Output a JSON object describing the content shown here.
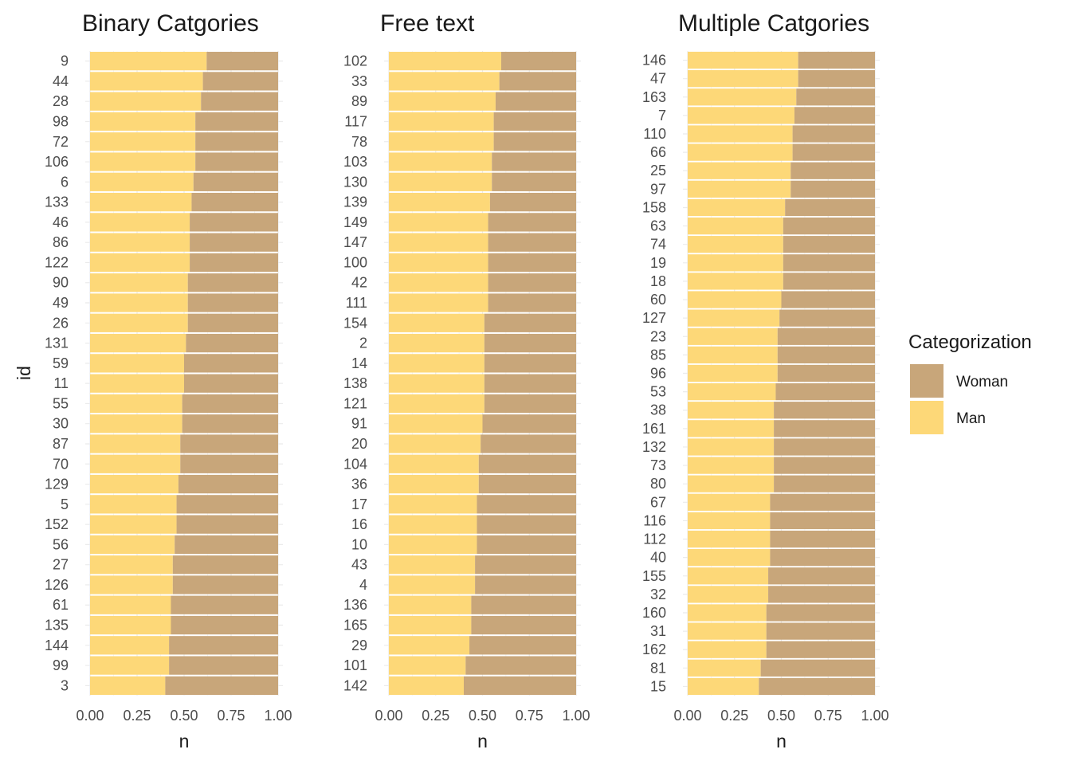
{
  "colors": {
    "woman": "#c8a67a",
    "man": "#fdd878",
    "background": "#ffffff"
  },
  "legend": {
    "title": "Categorization",
    "items": [
      {
        "label": "Woman",
        "color": "#c8a67a"
      },
      {
        "label": "Man",
        "color": "#fdd878"
      }
    ]
  },
  "y_axis_title": "id",
  "chart_data": [
    {
      "type": "bar",
      "orientation": "horizontal",
      "stacked": true,
      "title": "Binary Catgories",
      "xlabel": "n",
      "ylabel": "id",
      "xlim": [
        0,
        1
      ],
      "xticks": [
        "0.00",
        "0.25",
        "0.50",
        "0.75",
        "1.00"
      ],
      "categories": [
        "9",
        "44",
        "28",
        "98",
        "72",
        "106",
        "6",
        "133",
        "46",
        "86",
        "122",
        "90",
        "49",
        "26",
        "131",
        "59",
        "11",
        "55",
        "30",
        "87",
        "70",
        "129",
        "5",
        "152",
        "56",
        "27",
        "126",
        "61",
        "135",
        "144",
        "99",
        "3"
      ],
      "series": [
        {
          "name": "Man",
          "values": [
            0.62,
            0.6,
            0.59,
            0.56,
            0.56,
            0.56,
            0.55,
            0.54,
            0.53,
            0.53,
            0.53,
            0.52,
            0.52,
            0.52,
            0.51,
            0.5,
            0.5,
            0.49,
            0.49,
            0.48,
            0.48,
            0.47,
            0.46,
            0.46,
            0.45,
            0.44,
            0.44,
            0.43,
            0.43,
            0.42,
            0.42,
            0.4
          ]
        },
        {
          "name": "Woman",
          "values": [
            0.38,
            0.4,
            0.41,
            0.44,
            0.44,
            0.44,
            0.45,
            0.46,
            0.47,
            0.47,
            0.47,
            0.48,
            0.48,
            0.48,
            0.49,
            0.5,
            0.5,
            0.51,
            0.51,
            0.52,
            0.52,
            0.53,
            0.54,
            0.54,
            0.55,
            0.56,
            0.56,
            0.57,
            0.57,
            0.58,
            0.58,
            0.6
          ]
        }
      ]
    },
    {
      "type": "bar",
      "orientation": "horizontal",
      "stacked": true,
      "title": "Free text",
      "xlabel": "n",
      "xlim": [
        0,
        1
      ],
      "xticks": [
        "0.00",
        "0.25",
        "0.50",
        "0.75",
        "1.00"
      ],
      "categories": [
        "102",
        "33",
        "89",
        "117",
        "78",
        "103",
        "130",
        "139",
        "149",
        "147",
        "100",
        "42",
        "111",
        "154",
        "2",
        "14",
        "138",
        "121",
        "91",
        "20",
        "104",
        "36",
        "17",
        "16",
        "10",
        "43",
        "4",
        "136",
        "165",
        "29",
        "101",
        "142"
      ],
      "series": [
        {
          "name": "Man",
          "values": [
            0.6,
            0.59,
            0.57,
            0.56,
            0.56,
            0.55,
            0.55,
            0.54,
            0.53,
            0.53,
            0.53,
            0.53,
            0.53,
            0.51,
            0.51,
            0.51,
            0.51,
            0.51,
            0.5,
            0.49,
            0.48,
            0.48,
            0.47,
            0.47,
            0.47,
            0.46,
            0.46,
            0.44,
            0.44,
            0.43,
            0.41,
            0.4
          ]
        },
        {
          "name": "Woman",
          "values": [
            0.4,
            0.41,
            0.43,
            0.44,
            0.44,
            0.45,
            0.45,
            0.46,
            0.47,
            0.47,
            0.47,
            0.47,
            0.47,
            0.49,
            0.49,
            0.49,
            0.49,
            0.49,
            0.5,
            0.51,
            0.52,
            0.52,
            0.53,
            0.53,
            0.53,
            0.54,
            0.54,
            0.56,
            0.56,
            0.57,
            0.59,
            0.6
          ]
        }
      ]
    },
    {
      "type": "bar",
      "orientation": "horizontal",
      "stacked": true,
      "title": "Multiple Catgories",
      "xlabel": "n",
      "xlim": [
        0,
        1
      ],
      "xticks": [
        "0.00",
        "0.25",
        "0.50",
        "0.75",
        "1.00"
      ],
      "categories": [
        "146",
        "47",
        "163",
        "7",
        "110",
        "66",
        "25",
        "97",
        "158",
        "63",
        "74",
        "19",
        "18",
        "60",
        "127",
        "23",
        "85",
        "96",
        "53",
        "38",
        "161",
        "132",
        "73",
        "80",
        "67",
        "116",
        "112",
        "40",
        "155",
        "32",
        "160",
        "31",
        "162",
        "81",
        "15"
      ],
      "series": [
        {
          "name": "Man",
          "values": [
            0.59,
            0.59,
            0.58,
            0.57,
            0.56,
            0.56,
            0.55,
            0.55,
            0.52,
            0.51,
            0.51,
            0.51,
            0.51,
            0.5,
            0.49,
            0.48,
            0.48,
            0.48,
            0.47,
            0.46,
            0.46,
            0.46,
            0.46,
            0.46,
            0.44,
            0.44,
            0.44,
            0.44,
            0.43,
            0.43,
            0.42,
            0.42,
            0.42,
            0.39,
            0.38
          ]
        },
        {
          "name": "Woman",
          "values": [
            0.41,
            0.41,
            0.42,
            0.43,
            0.44,
            0.44,
            0.45,
            0.45,
            0.48,
            0.49,
            0.49,
            0.49,
            0.49,
            0.5,
            0.51,
            0.52,
            0.52,
            0.52,
            0.53,
            0.54,
            0.54,
            0.54,
            0.54,
            0.54,
            0.56,
            0.56,
            0.56,
            0.56,
            0.57,
            0.57,
            0.58,
            0.58,
            0.58,
            0.61,
            0.62
          ]
        }
      ]
    }
  ]
}
